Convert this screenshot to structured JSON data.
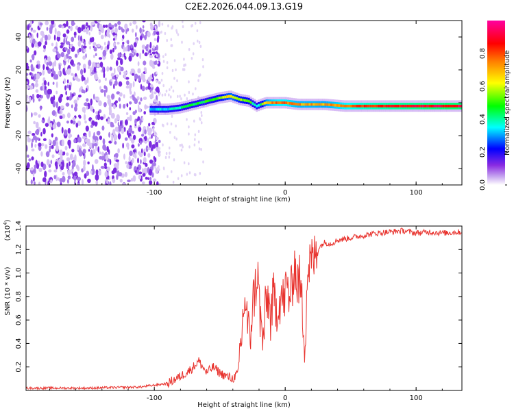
{
  "title": "C2E2.2026.044.09.13.G19",
  "chart_data": [
    {
      "type": "heatmap",
      "name": "spectrogram",
      "xlabel": "Height of straight line (km)",
      "ylabel": "Frequency (Hz)",
      "xlim": [
        -198,
        135
      ],
      "ylim": [
        -50,
        50
      ],
      "xticks": [
        -100,
        0,
        100
      ],
      "yticks": [
        -40,
        -20,
        0,
        20,
        40
      ],
      "colorbar": {
        "label": "Normalized spectral amplitude",
        "range": [
          0,
          1
        ],
        "ticks": [
          0.0,
          0.2,
          0.4,
          0.6,
          0.8
        ],
        "tick_labels": [
          "0.0",
          "0.2",
          "0.4",
          "0.6",
          "0.8"
        ],
        "colormap": [
          "#ffffff",
          "#c8a8f0",
          "#8a2be2",
          "#0000ff",
          "#00ffff",
          "#00ff00",
          "#ffff00",
          "#ff8000",
          "#ff0000",
          "#ff00a0"
        ]
      },
      "noise_region_x": [
        -198,
        -100
      ],
      "signal_track": {
        "x": [
          -103,
          -90,
          -80,
          -70,
          -60,
          -50,
          -42,
          -35,
          -28,
          -22,
          -15,
          -10,
          -5,
          0,
          10,
          20,
          30,
          45,
          60,
          80,
          100,
          120,
          135
        ],
        "freq": [
          -4,
          -4,
          -3,
          -1,
          1,
          3,
          4,
          2,
          1,
          -2,
          0,
          0,
          0,
          0,
          -1,
          -1,
          -1,
          -2,
          -2,
          -2,
          -2,
          -2,
          -2
        ],
        "amp": [
          0.4,
          0.45,
          0.48,
          0.52,
          0.55,
          0.6,
          0.7,
          0.62,
          0.6,
          0.4,
          0.72,
          0.78,
          0.8,
          0.8,
          0.75,
          0.75,
          0.74,
          0.8,
          0.85,
          0.88,
          0.9,
          0.92,
          0.92
        ]
      }
    },
    {
      "type": "line",
      "name": "snr",
      "xlabel": "Height of straight line (km)",
      "ylabel": "SNR (10 * v/v)",
      "scale_label": "(x10",
      "scale_exp": "4",
      "scale_close": ")",
      "xlim": [
        -198,
        135
      ],
      "ylim": [
        0,
        1.4
      ],
      "xticks": [
        -100,
        0,
        100
      ],
      "yticks": [
        0.2,
        0.4,
        0.6,
        0.8,
        1.0,
        1.2,
        1.4
      ],
      "ytick_labels": [
        "0.2",
        "0.4",
        "0.6",
        "0.8",
        "1.0",
        "1.2",
        "1.4"
      ],
      "color": "#e8322d",
      "series": {
        "x": [
          -198,
          -150,
          -110,
          -90,
          -80,
          -72,
          -66,
          -60,
          -55,
          -50,
          -45,
          -40,
          -36,
          -33,
          -31,
          -29,
          -27,
          -25,
          -23,
          -21,
          -19,
          -17,
          -15,
          -13,
          -11,
          -9,
          -7,
          -5,
          -3,
          -1,
          1,
          3,
          5,
          7,
          9,
          11,
          13,
          15,
          17,
          19,
          21,
          23,
          26,
          30,
          35,
          40,
          50,
          60,
          70,
          80,
          90,
          100,
          110,
          120,
          135
        ],
        "y": [
          0.02,
          0.02,
          0.03,
          0.06,
          0.12,
          0.18,
          0.25,
          0.15,
          0.2,
          0.15,
          0.12,
          0.1,
          0.15,
          0.5,
          0.8,
          0.6,
          0.4,
          0.75,
          0.85,
          1.0,
          0.6,
          0.4,
          0.7,
          0.8,
          0.6,
          0.8,
          0.7,
          0.75,
          0.8,
          0.75,
          0.9,
          0.8,
          0.85,
          1.1,
          0.9,
          0.95,
          0.7,
          0.4,
          1.0,
          1.1,
          1.1,
          1.15,
          1.22,
          1.26,
          1.25,
          1.28,
          1.3,
          1.32,
          1.34,
          1.35,
          1.36,
          1.34,
          1.35,
          1.34,
          1.35
        ]
      }
    }
  ]
}
